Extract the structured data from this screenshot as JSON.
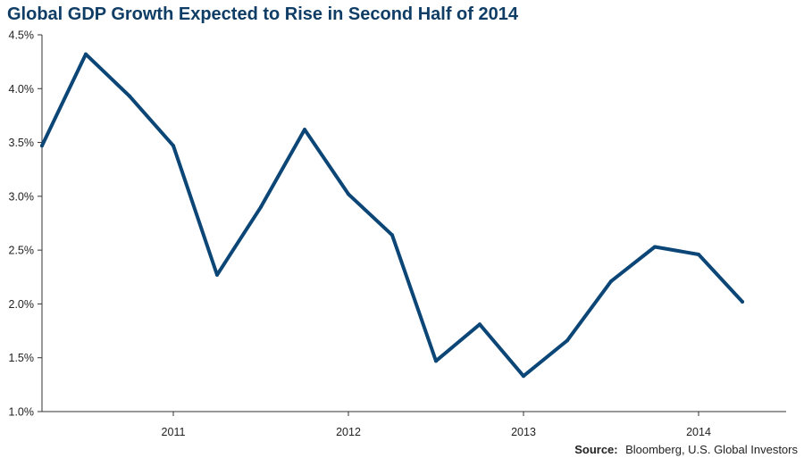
{
  "colors": {
    "title": "#0f3d66",
    "line": "#0b4677",
    "axis": "#333333",
    "text": "#222222"
  },
  "source": {
    "label": "Source:",
    "text": "Bloomberg, U.S. Global Investors"
  },
  "chart_data": {
    "type": "line",
    "title": "Global GDP Growth Expected to Rise in Second Half of 2014",
    "xlabel": "",
    "ylabel": "",
    "ylim": [
      1.0,
      4.5
    ],
    "xlim": [
      2010.25,
      2014.5
    ],
    "y_ticks": [
      {
        "value": 1.0,
        "label": "1.0%"
      },
      {
        "value": 1.5,
        "label": "1.5%"
      },
      {
        "value": 2.0,
        "label": "2.0%"
      },
      {
        "value": 2.5,
        "label": "2.5%"
      },
      {
        "value": 3.0,
        "label": "3.0%"
      },
      {
        "value": 3.5,
        "label": "3.5%"
      },
      {
        "value": 4.0,
        "label": "4.0%"
      },
      {
        "value": 4.5,
        "label": "4.5%"
      }
    ],
    "x_ticks": [
      {
        "value": 2011,
        "label": "2011"
      },
      {
        "value": 2012,
        "label": "2012"
      },
      {
        "value": 2013,
        "label": "2013"
      },
      {
        "value": 2014,
        "label": "2014"
      }
    ],
    "grid": false,
    "legend": "none",
    "series": [
      {
        "x": [
          2010.25,
          2010.5,
          2010.75,
          2011.0,
          2011.25,
          2011.5,
          2011.75,
          2012.0,
          2012.25,
          2012.5,
          2012.75,
          2013.0,
          2013.25,
          2013.5,
          2013.75,
          2014.0,
          2014.25
        ],
        "values": [
          3.47,
          4.32,
          3.93,
          3.47,
          2.27,
          2.9,
          3.62,
          3.02,
          2.64,
          1.47,
          1.81,
          1.33,
          1.66,
          2.21,
          2.53,
          2.46,
          2.02
        ]
      }
    ]
  }
}
